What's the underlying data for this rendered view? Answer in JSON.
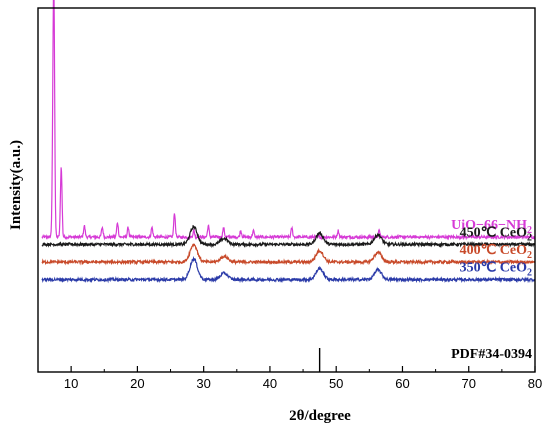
{
  "chart_data": {
    "type": "line",
    "xlabel": "2θ/degree",
    "ylabel": "Intensity(a.u.)",
    "xlim": [
      5,
      80
    ],
    "x_ticks": [
      10,
      20,
      30,
      40,
      50,
      60,
      70,
      80
    ],
    "y_ticks": [],
    "grid": false,
    "series": [
      {
        "name": "UiO−66−NH₂",
        "label_main": "UiO−66−NH",
        "label_sub": "2",
        "color": "#d63ad6",
        "baseline": 0.78,
        "peaks": [
          [
            7.4,
            7.0
          ],
          [
            7.25,
            2.2
          ],
          [
            8.5,
            2.2
          ],
          [
            12.0,
            0.35
          ],
          [
            14.7,
            0.3
          ],
          [
            17.0,
            0.45
          ],
          [
            18.6,
            0.3
          ],
          [
            22.2,
            0.3
          ],
          [
            25.6,
            0.75
          ],
          [
            28.5,
            0.2
          ],
          [
            30.7,
            0.35
          ],
          [
            33.0,
            0.28
          ],
          [
            35.6,
            0.2
          ],
          [
            37.5,
            0.2
          ],
          [
            43.3,
            0.28
          ],
          [
            50.3,
            0.2
          ],
          [
            56.5,
            0.2
          ]
        ]
      },
      {
        "name": "450℃ CeO₂",
        "label_main": "450℃ CeO",
        "label_sub": "2",
        "color": "#1a1a1a",
        "baseline": 0.55,
        "peaks": [
          [
            28.5,
            0.55
          ],
          [
            33.1,
            0.18
          ],
          [
            47.5,
            0.35
          ],
          [
            56.3,
            0.3
          ]
        ]
      },
      {
        "name": "400℃ CeO₂",
        "label_main": "400℃ CeO",
        "label_sub": "2",
        "color": "#c84a2a",
        "baseline": 0.0,
        "peaks": [
          [
            28.5,
            0.55
          ],
          [
            33.1,
            0.18
          ],
          [
            47.5,
            0.35
          ],
          [
            56.3,
            0.3
          ]
        ]
      },
      {
        "name": "350℃ CeO₂",
        "label_main": "350℃ CeO",
        "label_sub": "2",
        "color": "#2a3aa8",
        "baseline": -0.55,
        "peaks": [
          [
            28.5,
            0.65
          ],
          [
            33.1,
            0.2
          ],
          [
            47.5,
            0.35
          ],
          [
            56.3,
            0.3
          ]
        ]
      }
    ],
    "reference": {
      "name": "PDF#34-0394",
      "lines": [
        47.5
      ]
    }
  }
}
